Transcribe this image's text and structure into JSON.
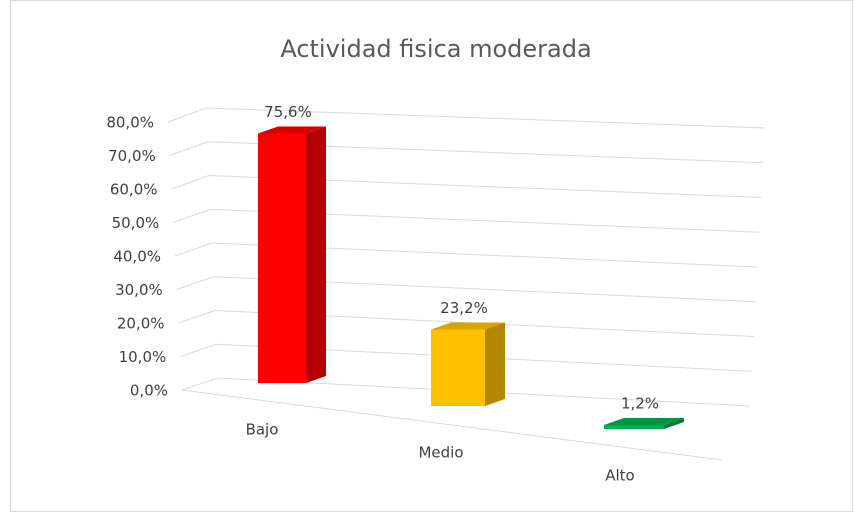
{
  "chart_data": {
    "type": "bar3d",
    "title": "Actividad fisica moderada",
    "categories": [
      "Bajo",
      "Medio",
      "Alto"
    ],
    "values": [
      75.6,
      23.2,
      1.2
    ],
    "value_labels": [
      "75,6%",
      "23,2%",
      "1,2%"
    ],
    "colors": [
      "#ff0000",
      "#ffc000",
      "#00b050"
    ],
    "ylim": [
      0,
      80
    ],
    "yticks": [
      {
        "value": 0,
        "label": "0,0%"
      },
      {
        "value": 10,
        "label": "10,0%"
      },
      {
        "value": 20,
        "label": "20,0%"
      },
      {
        "value": 30,
        "label": "30,0%"
      },
      {
        "value": 40,
        "label": "40,0%"
      },
      {
        "value": 50,
        "label": "50,0%"
      },
      {
        "value": 60,
        "label": "60,0%"
      },
      {
        "value": 70,
        "label": "70,0%"
      },
      {
        "value": 80,
        "label": "80,0%"
      }
    ],
    "grid": true
  }
}
